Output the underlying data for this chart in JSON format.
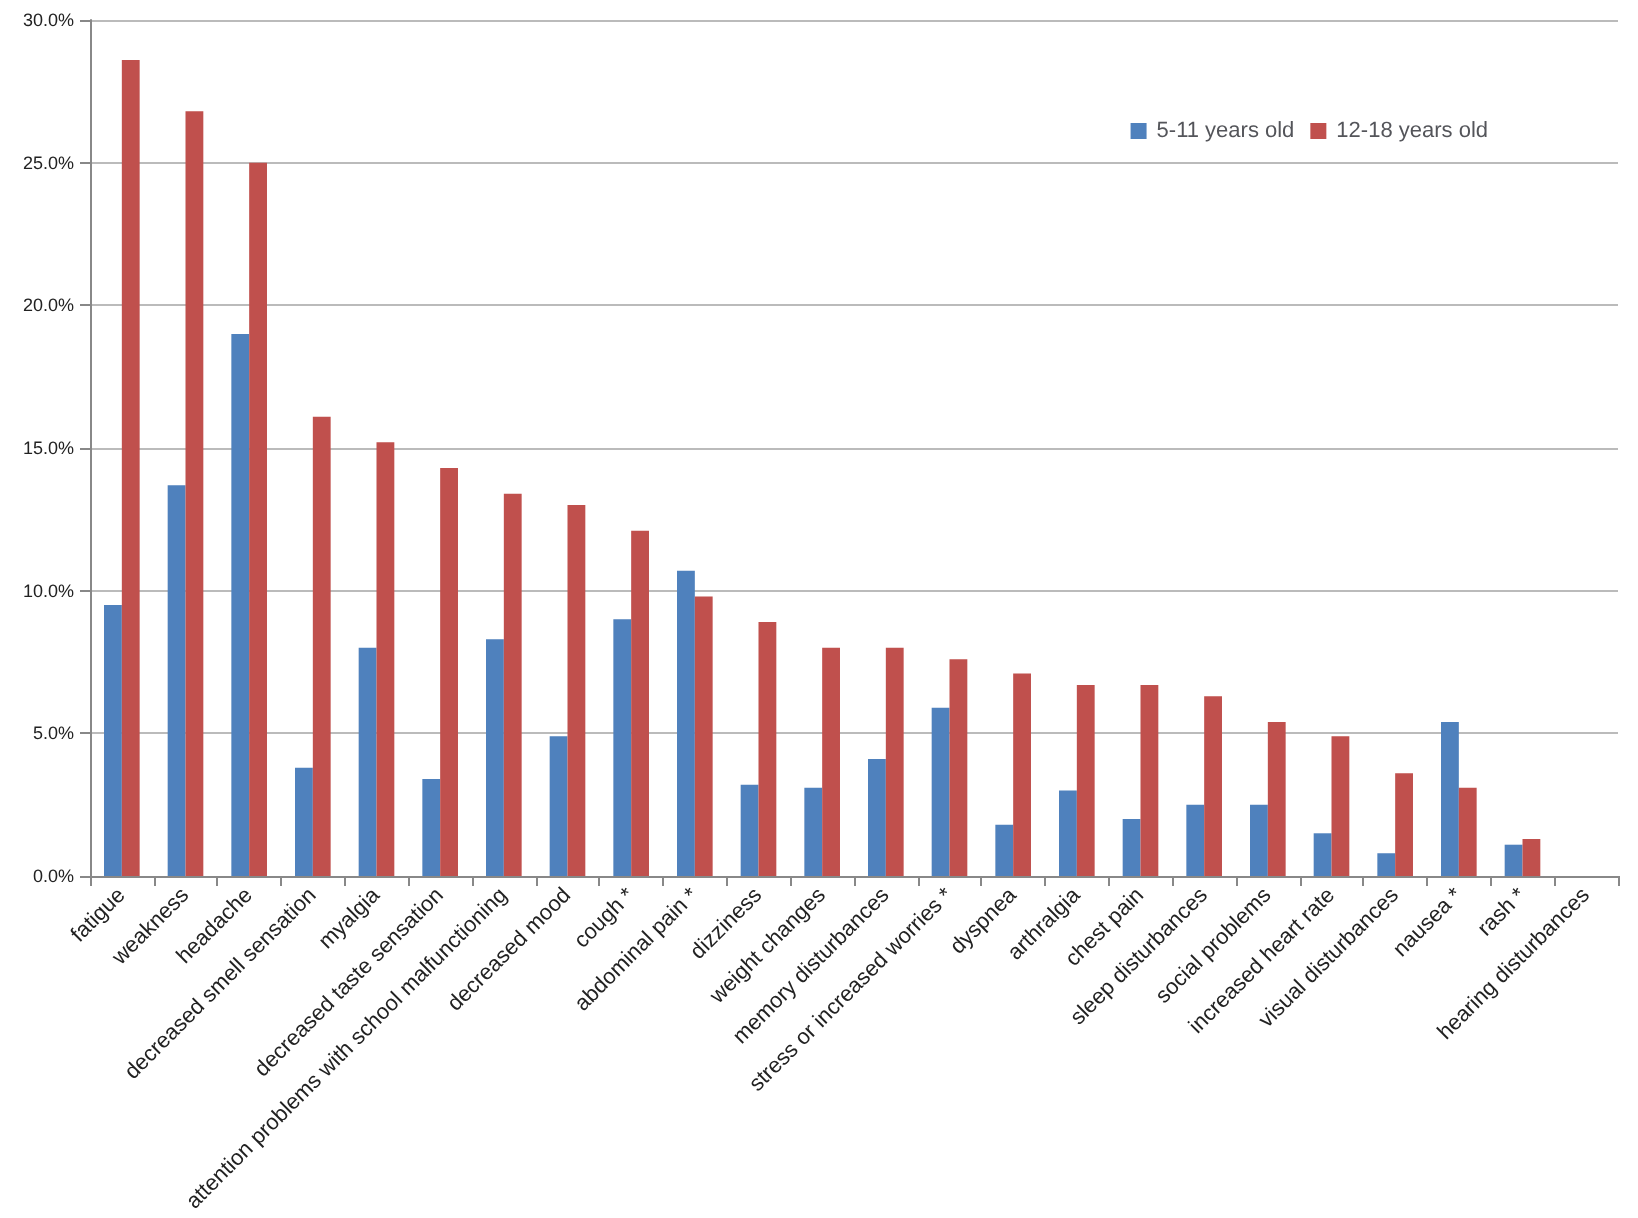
{
  "chart_data": {
    "type": "bar",
    "categories": [
      "fatigue",
      "weakness",
      "headache",
      "decreased smell sensation",
      "myalgia",
      "decreased taste sensation",
      "attention problems with school malfunctioning",
      "decreased mood",
      "cough *",
      "abdominal pain *",
      "dizziness",
      "weight changes",
      "memory disturbances",
      "stress or increased worries *",
      "dyspnea",
      "arthralgia",
      "chest pain",
      "sleep disturbances",
      "social problems",
      "increased heart rate",
      "visual disturbances",
      "nausea *",
      "rash *",
      "hearing disturbances"
    ],
    "series": [
      {
        "name": "5-11 years old",
        "color": "#4f81bd",
        "values": [
          9.5,
          13.7,
          19.0,
          3.8,
          8.0,
          3.4,
          8.3,
          4.9,
          9.0,
          10.7,
          3.2,
          3.1,
          4.1,
          5.9,
          1.8,
          3.0,
          2.0,
          2.5,
          2.5,
          1.5,
          0.8,
          5.4,
          1.1,
          0
        ]
      },
      {
        "name": "12-18 years old",
        "color": "#c0504d",
        "values": [
          28.6,
          26.8,
          25.0,
          16.1,
          15.2,
          14.3,
          13.4,
          13.0,
          12.1,
          9.8,
          8.9,
          8.0,
          8.0,
          7.6,
          7.1,
          6.7,
          6.7,
          6.3,
          5.4,
          4.9,
          3.6,
          3.1,
          1.3,
          0
        ]
      }
    ],
    "ylim": [
      0,
      30
    ],
    "yticks": [
      {
        "value": 0,
        "label": "0.0%"
      },
      {
        "value": 5,
        "label": "5.0%"
      },
      {
        "value": 10,
        "label": "10.0%"
      },
      {
        "value": 15,
        "label": "15.0%"
      },
      {
        "value": 20,
        "label": "20.0%"
      },
      {
        "value": 25,
        "label": "25.0%"
      },
      {
        "value": 30,
        "label": "30.0%"
      }
    ],
    "grid": "y",
    "legend": "top right"
  }
}
